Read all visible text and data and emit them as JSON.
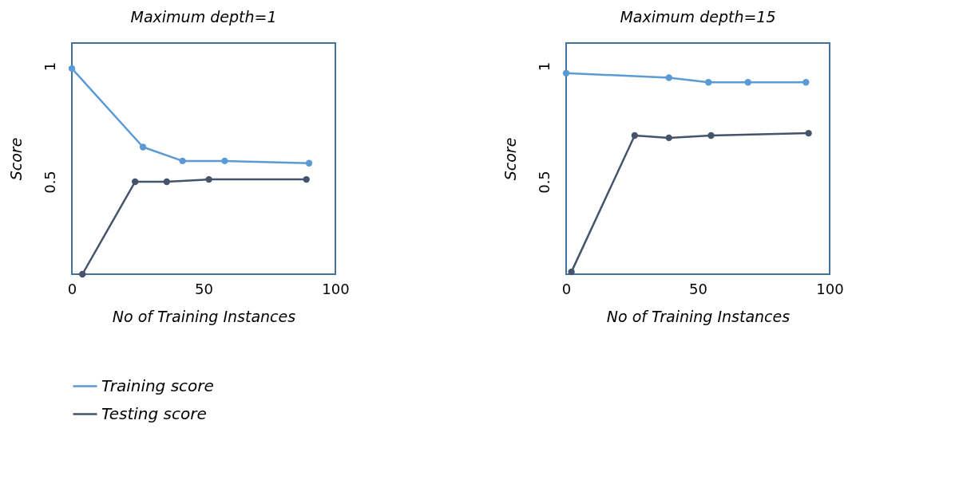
{
  "chart_data": [
    {
      "type": "line",
      "title": "Maximum depth=1",
      "xlabel": "No of  Training Instances",
      "ylabel": "Score",
      "xlim": [
        0,
        100
      ],
      "xticks": [
        0,
        50,
        100
      ],
      "ylim": [
        0.1,
        1.1
      ],
      "yticks": [
        0.5,
        {
          "value": 1,
          "label": "1"
        }
      ],
      "grid": false,
      "legend": "bottom",
      "marker": "circle",
      "line_style": "solid",
      "series": [
        {
          "name": "Training score",
          "color": "#5b9bd5",
          "x": [
            0,
            27,
            42,
            58,
            90
          ],
          "values": [
            0.99,
            0.65,
            0.59,
            0.59,
            0.58
          ]
        },
        {
          "name": "Testing score",
          "color": "#44546a",
          "x": [
            4,
            24,
            36,
            52,
            89
          ],
          "values": [
            0.1,
            0.5,
            0.5,
            0.51,
            0.51
          ]
        }
      ]
    },
    {
      "type": "line",
      "title": "Maximum depth=15",
      "xlabel": "No of Training Instances",
      "ylabel": "Score",
      "xlim": [
        0,
        100
      ],
      "xticks": [
        0,
        50,
        100
      ],
      "ylim": [
        0.1,
        1.1
      ],
      "yticks": [
        0.5,
        {
          "value": 1,
          "label": "1"
        }
      ],
      "grid": false,
      "legend": "bottom",
      "marker": "circle",
      "line_style": "solid",
      "series": [
        {
          "name": "Training score",
          "color": "#5b9bd5",
          "x": [
            0,
            39,
            54,
            69,
            91
          ],
          "values": [
            0.97,
            0.95,
            0.93,
            0.93,
            0.93
          ]
        },
        {
          "name": "Testing score",
          "color": "#44546a",
          "x": [
            2,
            26,
            39,
            55,
            92
          ],
          "values": [
            0.11,
            0.7,
            0.69,
            0.7,
            0.71
          ]
        }
      ]
    }
  ]
}
